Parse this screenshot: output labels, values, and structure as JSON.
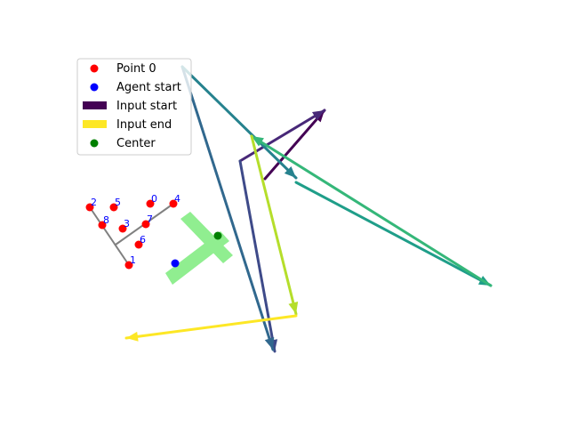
{
  "legend": {
    "entries": [
      {
        "label": "Point 0",
        "kind": "dot",
        "color": "#ff0000"
      },
      {
        "label": "Agent start",
        "kind": "dot",
        "color": "#0000ff"
      },
      {
        "label": "Input start",
        "kind": "bar",
        "color": "#440154"
      },
      {
        "label": "Input end",
        "kind": "bar",
        "color": "#fde725"
      },
      {
        "label": "Center",
        "kind": "dot",
        "color": "#008000"
      }
    ]
  },
  "colors": {
    "points": "#ff0000",
    "agent": "#0000ff",
    "center": "#008000",
    "skeleton": "#808080",
    "t_shape": "#90ee90",
    "labels": "#0000ff"
  },
  "points": [
    {
      "label": "0"
    },
    {
      "label": "1"
    },
    {
      "label": "2"
    },
    {
      "label": "3"
    },
    {
      "label": "4"
    },
    {
      "label": "5"
    },
    {
      "label": "6"
    },
    {
      "label": "7"
    },
    {
      "label": "8"
    }
  ],
  "arrow_colors": [
    "#440154",
    "#482878",
    "#3e4a89",
    "#31688e",
    "#26828e",
    "#1f9e89",
    "#35b779",
    "#6ece58",
    "#b5de2b",
    "#fde725"
  ]
}
